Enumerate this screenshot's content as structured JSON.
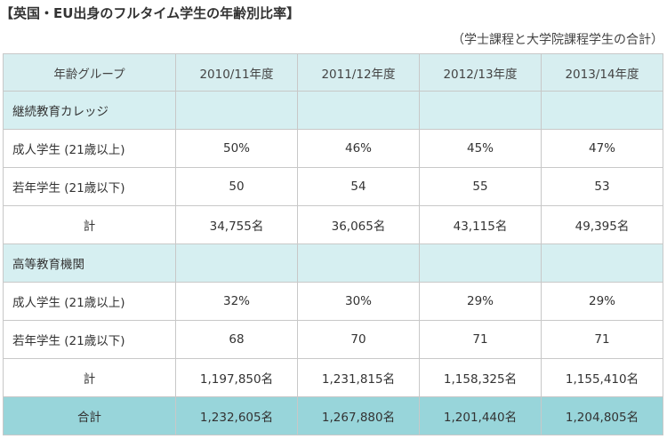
{
  "title": "【英国・EU出身のフルタイム学生の年齢別比率】",
  "subtitle": "（学士課程と大学院課程学生の合計）",
  "table": {
    "header_label": "年齢グループ",
    "years": [
      "2010/11年度",
      "2011/12年度",
      "2012/13年度",
      "2013/14年度"
    ],
    "sections": [
      {
        "name": "継続教育カレッジ",
        "rows": [
          {
            "label": "成人学生 (21歳以上)",
            "values": [
              "50%",
              "46%",
              "45%",
              "47%"
            ]
          },
          {
            "label": "若年学生 (21歳以下)",
            "values": [
              "50",
              "54",
              "55",
              "53"
            ]
          },
          {
            "label": "計",
            "values": [
              "34,755名",
              "36,065名",
              "43,115名",
              "49,395名"
            ]
          }
        ]
      },
      {
        "name": "高等教育機関",
        "rows": [
          {
            "label": "成人学生 (21歳以上)",
            "values": [
              "32%",
              "30%",
              "29%",
              "29%"
            ]
          },
          {
            "label": "若年学生 (21歳以下)",
            "values": [
              "68",
              "70",
              "71",
              "71"
            ]
          },
          {
            "label": "計",
            "values": [
              "1,197,850名",
              "1,231,815名",
              "1,158,325名",
              "1,155,410名"
            ]
          }
        ]
      }
    ],
    "grand_total": {
      "label": "合計",
      "values": [
        "1,232,605名",
        "1,267,880名",
        "1,201,440名",
        "1,204,805名"
      ]
    }
  },
  "colors": {
    "header_bg": "#d7eef0",
    "section_bg": "#d6eff1",
    "total_bg": "#98d5da",
    "border": "#c8c8c8"
  }
}
